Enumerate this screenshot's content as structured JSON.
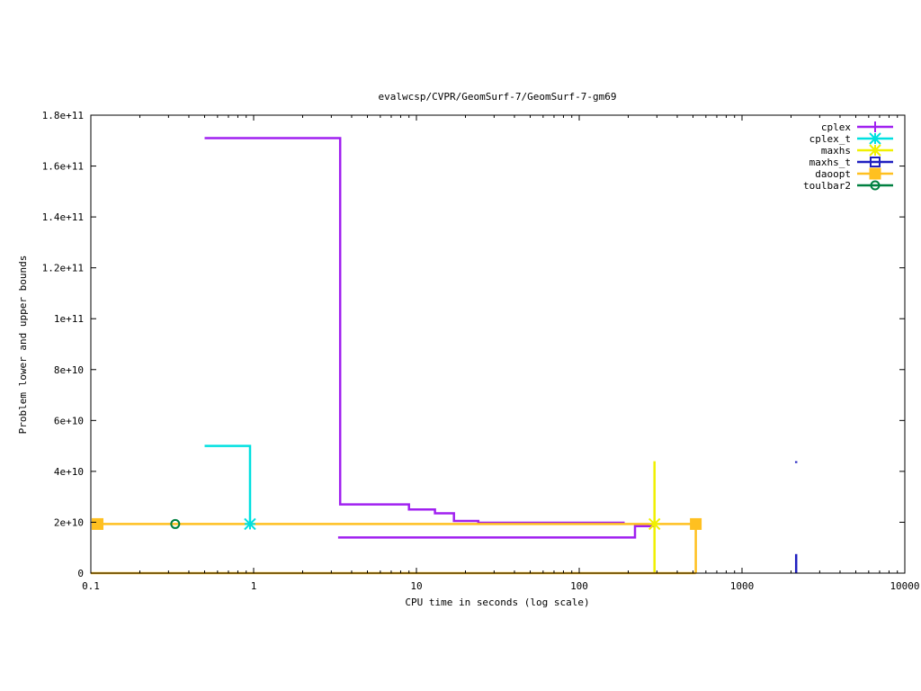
{
  "chart_data": {
    "type": "line",
    "title": "evalwcsp/CVPR/GeomSurf-7/GeomSurf-7-gm69",
    "xlabel": "CPU time in seconds (log scale)",
    "ylabel": "Problem lower and upper bounds",
    "x_scale": "log",
    "xlim": [
      0.1,
      10000
    ],
    "ylim": [
      0,
      180000000000
    ],
    "x_ticks": [
      {
        "value": 0.1,
        "label": "0.1"
      },
      {
        "value": 1,
        "label": "1"
      },
      {
        "value": 10,
        "label": "10"
      },
      {
        "value": 100,
        "label": "100"
      },
      {
        "value": 1000,
        "label": "1000"
      },
      {
        "value": 10000,
        "label": "10000"
      }
    ],
    "y_ticks": [
      {
        "value": 0,
        "label": "0"
      },
      {
        "value": 20000000000,
        "label": "2e+10"
      },
      {
        "value": 40000000000,
        "label": "4e+10"
      },
      {
        "value": 60000000000,
        "label": "6e+10"
      },
      {
        "value": 80000000000,
        "label": "8e+10"
      },
      {
        "value": 100000000000,
        "label": "1e+11"
      },
      {
        "value": 120000000000,
        "label": "1.2e+11"
      },
      {
        "value": 140000000000,
        "label": "1.4e+11"
      },
      {
        "value": 160000000000,
        "label": "1.6e+11"
      },
      {
        "value": 180000000000,
        "label": "1.8e+11"
      }
    ],
    "legend_position": "top-right",
    "grid": false,
    "series": [
      {
        "name": "cplex",
        "color": "#a020f0",
        "marker": "plus",
        "lines": [
          {
            "role": "upper",
            "points": [
              [
                0.5,
                171000000000
              ],
              [
                3.4,
                171000000000
              ],
              [
                3.4,
                27000000000
              ],
              [
                9,
                27000000000
              ],
              [
                9,
                25000000000
              ],
              [
                13,
                25000000000
              ],
              [
                13,
                23500000000
              ],
              [
                17,
                23500000000
              ],
              [
                17,
                20500000000
              ],
              [
                24,
                20500000000
              ],
              [
                24,
                19800000000
              ],
              [
                190,
                19800000000
              ]
            ]
          },
          {
            "role": "lower",
            "points": [
              [
                3.3,
                14000000000
              ],
              [
                220,
                14000000000
              ],
              [
                220,
                18500000000
              ],
              [
                290,
                18500000000
              ]
            ]
          }
        ],
        "markers": []
      },
      {
        "name": "cplex_t",
        "color": "#00e0e0",
        "marker": "star",
        "lines": [
          {
            "role": "upper",
            "points": [
              [
                0.5,
                50000000000
              ],
              [
                0.95,
                50000000000
              ],
              [
                0.95,
                19300000000
              ]
            ]
          }
        ],
        "markers": [
          [
            0.95,
            19300000000
          ]
        ]
      },
      {
        "name": "maxhs",
        "color": "#f0f000",
        "marker": "star",
        "lines": [
          {
            "role": "bound",
            "points": [
              [
                290,
                44000000000
              ],
              [
                290,
                0
              ]
            ]
          }
        ],
        "markers": [
          [
            290,
            19300000000
          ]
        ]
      },
      {
        "name": "maxhs_t",
        "color": "#2020c0",
        "marker": "square-open",
        "lines": [
          {
            "role": "upper",
            "points": [
              [
                2150,
                44000000000
              ],
              [
                2150,
                43300000000
              ]
            ]
          },
          {
            "role": "lower",
            "points": [
              [
                2150,
                7500000000
              ],
              [
                2150,
                0
              ]
            ]
          }
        ],
        "markers": []
      },
      {
        "name": "daoopt",
        "color": "#ffc020",
        "marker": "square",
        "lines": [
          {
            "role": "upper",
            "points": [
              [
                0.11,
                19300000000
              ],
              [
                520,
                19300000000
              ],
              [
                520,
                0
              ]
            ]
          },
          {
            "role": "lower",
            "points": [
              [
                0.1,
                0
              ],
              [
                520,
                0
              ]
            ]
          }
        ],
        "markers": [
          [
            0.11,
            19300000000
          ],
          [
            520,
            19300000000
          ]
        ]
      },
      {
        "name": "toulbar2",
        "color": "#008040",
        "marker": "circle-open",
        "lines": [],
        "markers": [
          [
            0.33,
            19300000000
          ]
        ]
      }
    ]
  }
}
